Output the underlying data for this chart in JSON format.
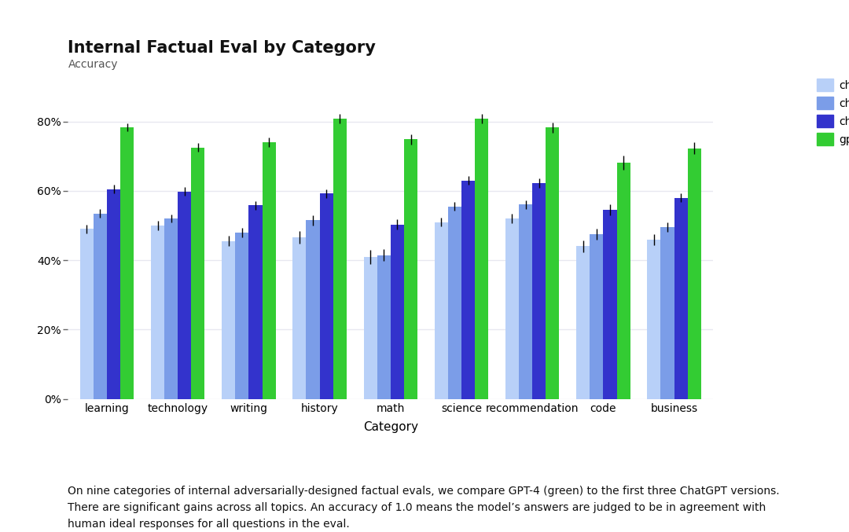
{
  "title": "Internal Factual Eval by Category",
  "subtitle": "Accuracy",
  "xlabel": "Category",
  "categories": [
    "learning",
    "technology",
    "writing",
    "history",
    "math",
    "science",
    "recommendation",
    "code",
    "business"
  ],
  "series": {
    "chatgpt-v2": [
      0.49,
      0.5,
      0.455,
      0.465,
      0.41,
      0.51,
      0.52,
      0.44,
      0.46
    ],
    "chatgpt-v3": [
      0.535,
      0.52,
      0.48,
      0.515,
      0.415,
      0.555,
      0.56,
      0.475,
      0.495
    ],
    "chatgpt-v4": [
      0.605,
      0.598,
      0.558,
      0.592,
      0.503,
      0.63,
      0.622,
      0.545,
      0.58
    ],
    "gpt-4": [
      0.783,
      0.725,
      0.74,
      0.808,
      0.748,
      0.808,
      0.782,
      0.681,
      0.723
    ]
  },
  "errors": {
    "chatgpt-v2": [
      0.012,
      0.013,
      0.015,
      0.018,
      0.02,
      0.013,
      0.014,
      0.018,
      0.016
    ],
    "chatgpt-v3": [
      0.013,
      0.012,
      0.013,
      0.015,
      0.018,
      0.012,
      0.013,
      0.015,
      0.014
    ],
    "chatgpt-v4": [
      0.012,
      0.012,
      0.013,
      0.013,
      0.015,
      0.012,
      0.013,
      0.015,
      0.013
    ],
    "gpt-4": [
      0.012,
      0.013,
      0.013,
      0.013,
      0.014,
      0.013,
      0.014,
      0.02,
      0.016
    ]
  },
  "colors": {
    "chatgpt-v2": "#b8d0f8",
    "chatgpt-v3": "#7b9de8",
    "chatgpt-v4": "#3333cc",
    "gpt-4": "#33cc33"
  },
  "background_color": "#ffffff",
  "plot_background": "#ffffff",
  "grid_color": "#e8e8f0",
  "yticks": [
    0.0,
    0.2,
    0.4,
    0.6,
    0.8
  ],
  "ylim": [
    0,
    0.92
  ],
  "caption": "On nine categories of internal adversarially-designed factual evals, we compare GPT-4 (green) to the first three ChatGPT versions.\nThere are significant gains across all topics. An accuracy of 1.0 means the model’s answers are judged to be in agreement with\nhuman ideal responses for all questions in the eval.",
  "bar_width": 0.19,
  "title_fontsize": 15,
  "subtitle_fontsize": 10,
  "tick_fontsize": 10,
  "xlabel_fontsize": 11
}
